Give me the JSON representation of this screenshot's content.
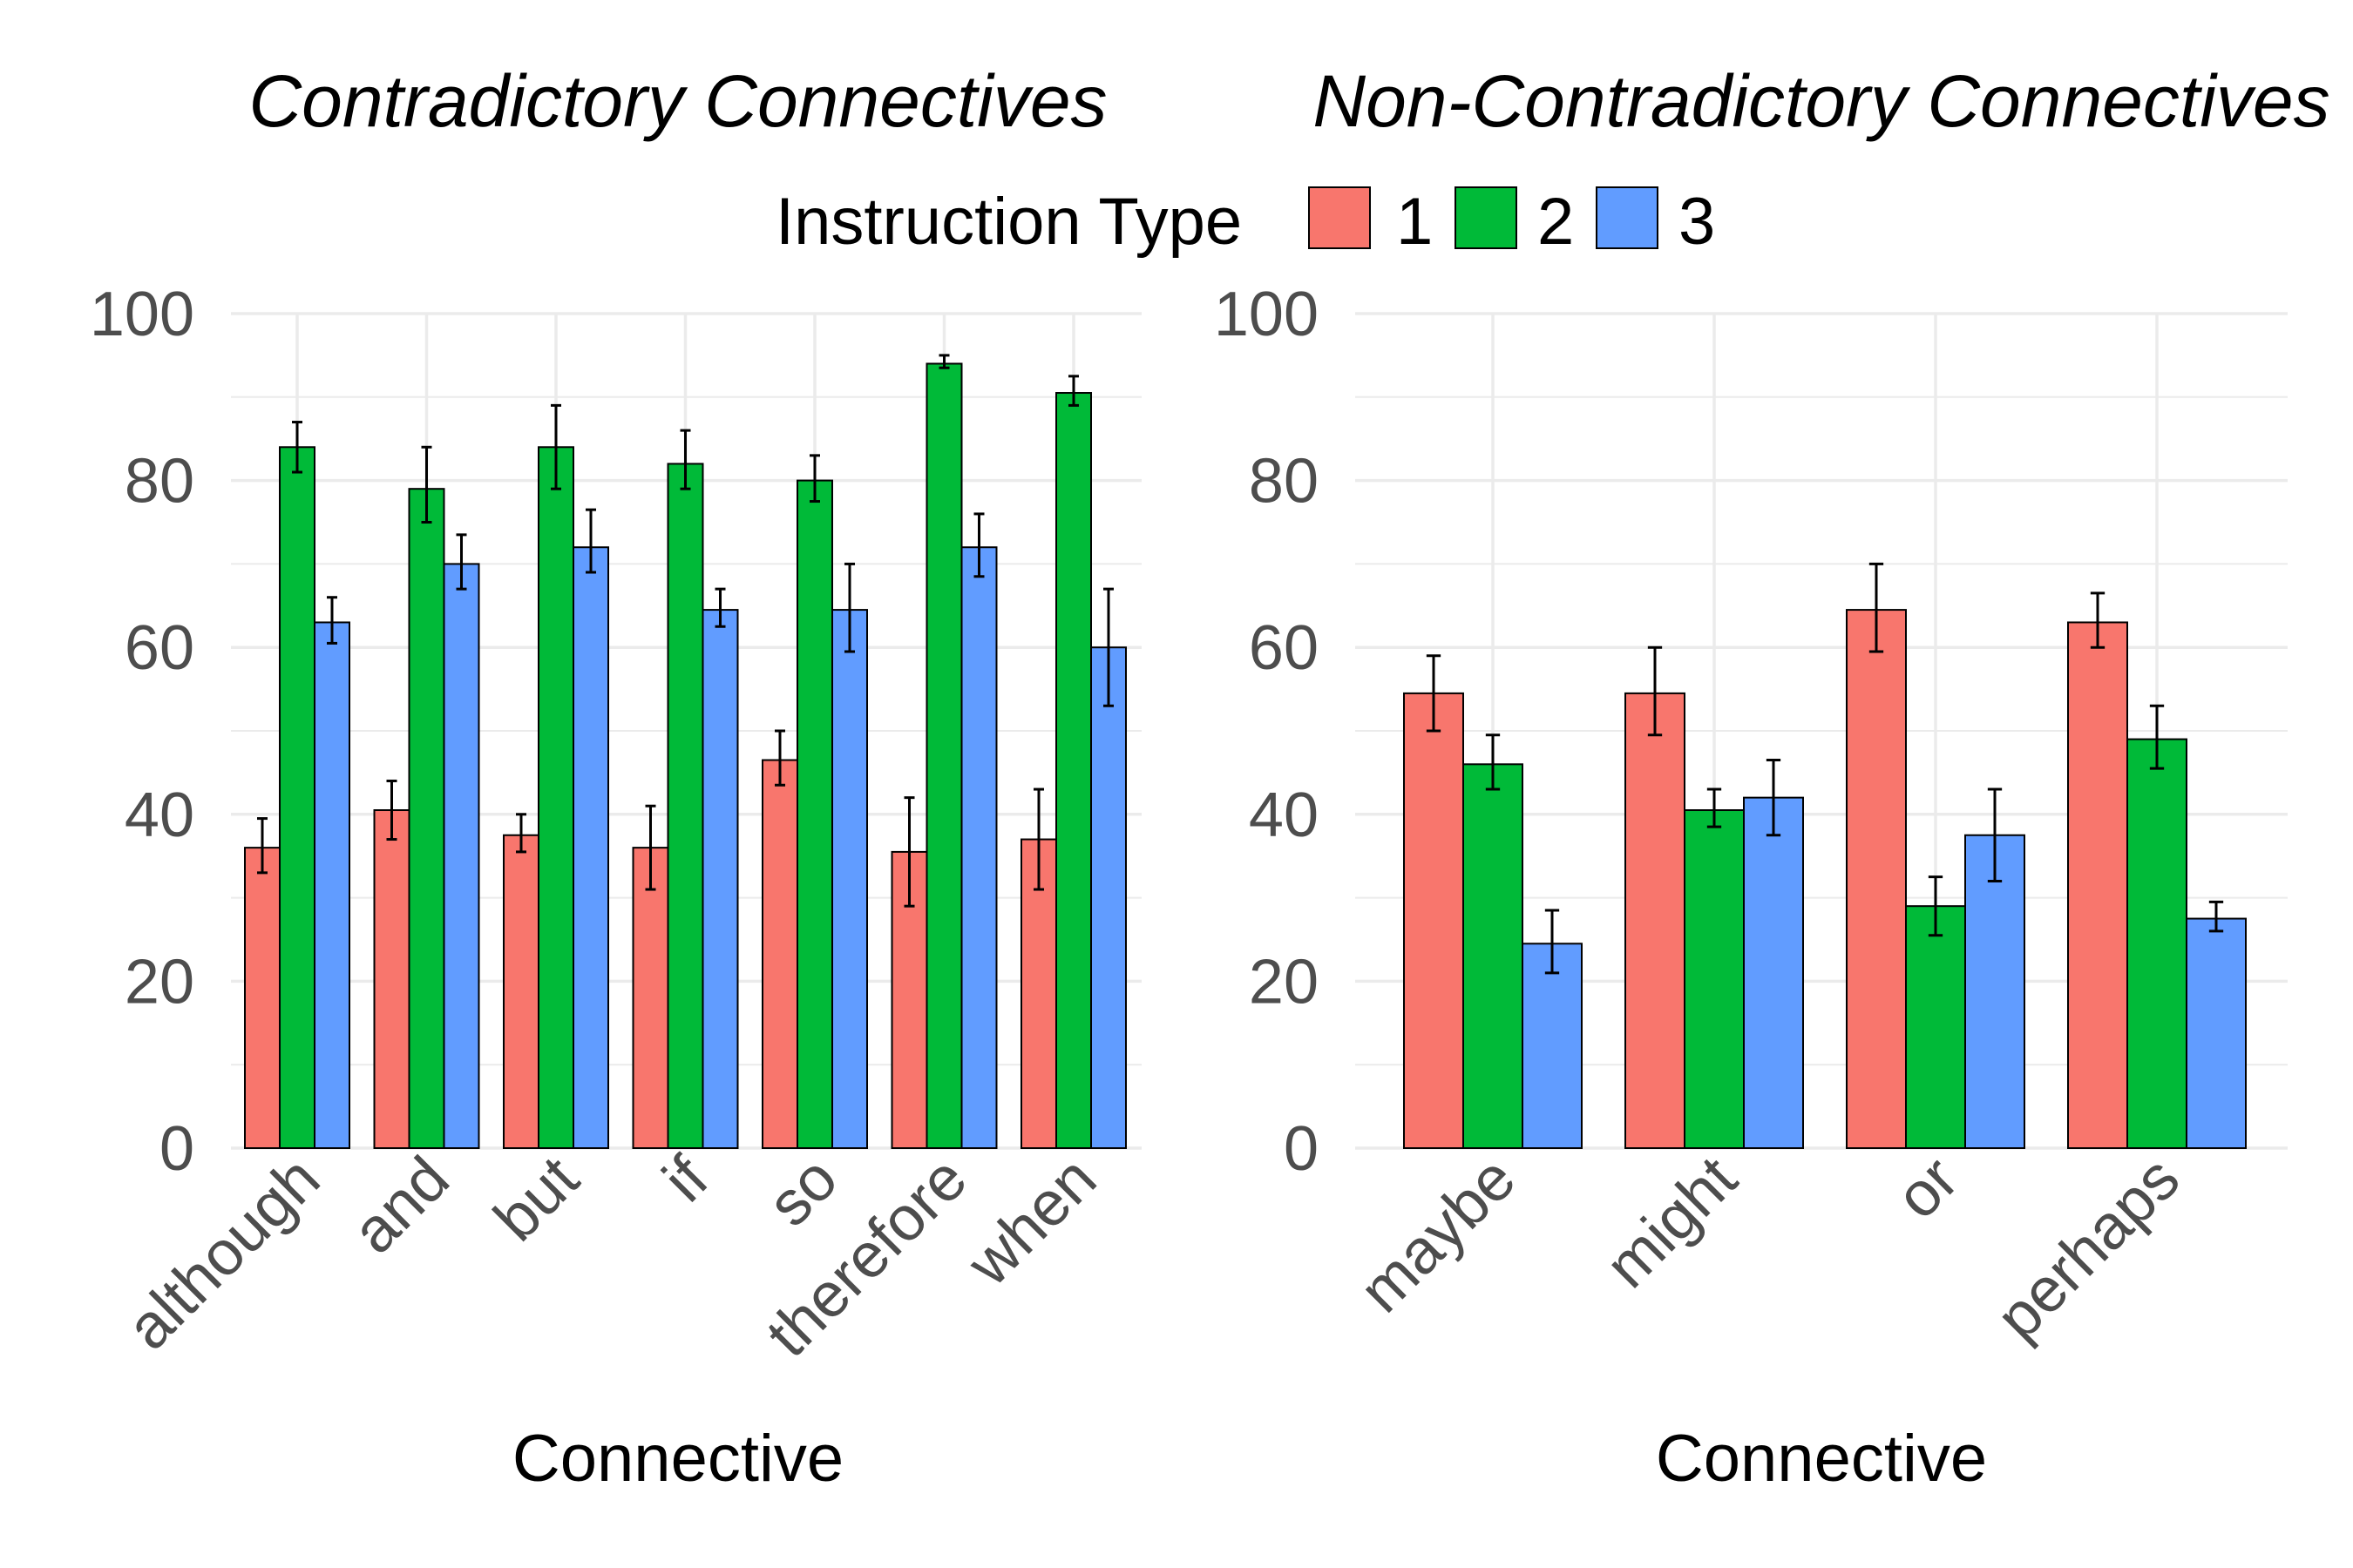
{
  "legend": {
    "title": "Instruction Type",
    "entries": [
      "1",
      "2",
      "3"
    ]
  },
  "colors": {
    "1": "#F8766D",
    "2": "#00BA38",
    "3": "#619CFF",
    "grid": "#ebebeb",
    "tick_text": "#4d4d4d"
  },
  "chart_data": [
    {
      "type": "bar",
      "title": "Contradictory Connectives",
      "xlabel": "Connective",
      "ylabel": "",
      "ylim": [
        0,
        100
      ],
      "yticks": [
        0,
        20,
        40,
        60,
        80,
        100
      ],
      "grid": true,
      "legend_position": "top",
      "categories": [
        "although",
        "and",
        "but",
        "if",
        "so",
        "therefore",
        "when"
      ],
      "series": [
        {
          "name": "1",
          "values": [
            36,
            40.5,
            37.5,
            36,
            46.5,
            35.5,
            37
          ],
          "error_low": [
            33,
            37,
            35.5,
            31,
            43.5,
            29,
            31
          ],
          "error_high": [
            39.5,
            44,
            40,
            41,
            50,
            42,
            43
          ]
        },
        {
          "name": "2",
          "values": [
            84,
            79,
            84,
            82,
            80,
            94,
            90.5
          ],
          "error_low": [
            81,
            75,
            79,
            79,
            77.5,
            93.5,
            89
          ],
          "error_high": [
            87,
            84,
            89,
            86,
            83,
            95,
            92.5
          ]
        },
        {
          "name": "3",
          "values": [
            63,
            70,
            72,
            64.5,
            64.5,
            72,
            60
          ],
          "error_low": [
            60.5,
            67,
            69,
            62.5,
            59.5,
            68.5,
            53
          ],
          "error_high": [
            66,
            73.5,
            76.5,
            67,
            70,
            76,
            67
          ]
        }
      ]
    },
    {
      "type": "bar",
      "title": "Non-Contradictory Connectives",
      "xlabel": "Connective",
      "ylabel": "",
      "ylim": [
        0,
        100
      ],
      "yticks": [
        0,
        20,
        40,
        60,
        80,
        100
      ],
      "grid": true,
      "legend_position": "top",
      "categories": [
        "maybe",
        "might",
        "or",
        "perhaps"
      ],
      "series": [
        {
          "name": "1",
          "values": [
            54.5,
            54.5,
            64.5,
            63
          ],
          "error_low": [
            50,
            49.5,
            59.5,
            60
          ],
          "error_high": [
            59,
            60,
            70,
            66.5
          ]
        },
        {
          "name": "2",
          "values": [
            46,
            40.5,
            29,
            49
          ],
          "error_low": [
            43,
            38.5,
            25.5,
            45.5
          ],
          "error_high": [
            49.5,
            43,
            32.5,
            53
          ]
        },
        {
          "name": "3",
          "values": [
            24.5,
            42,
            37.5,
            27.5
          ],
          "error_low": [
            21,
            37.5,
            32,
            26
          ],
          "error_high": [
            28.5,
            46.5,
            43,
            29.5
          ]
        }
      ]
    }
  ]
}
